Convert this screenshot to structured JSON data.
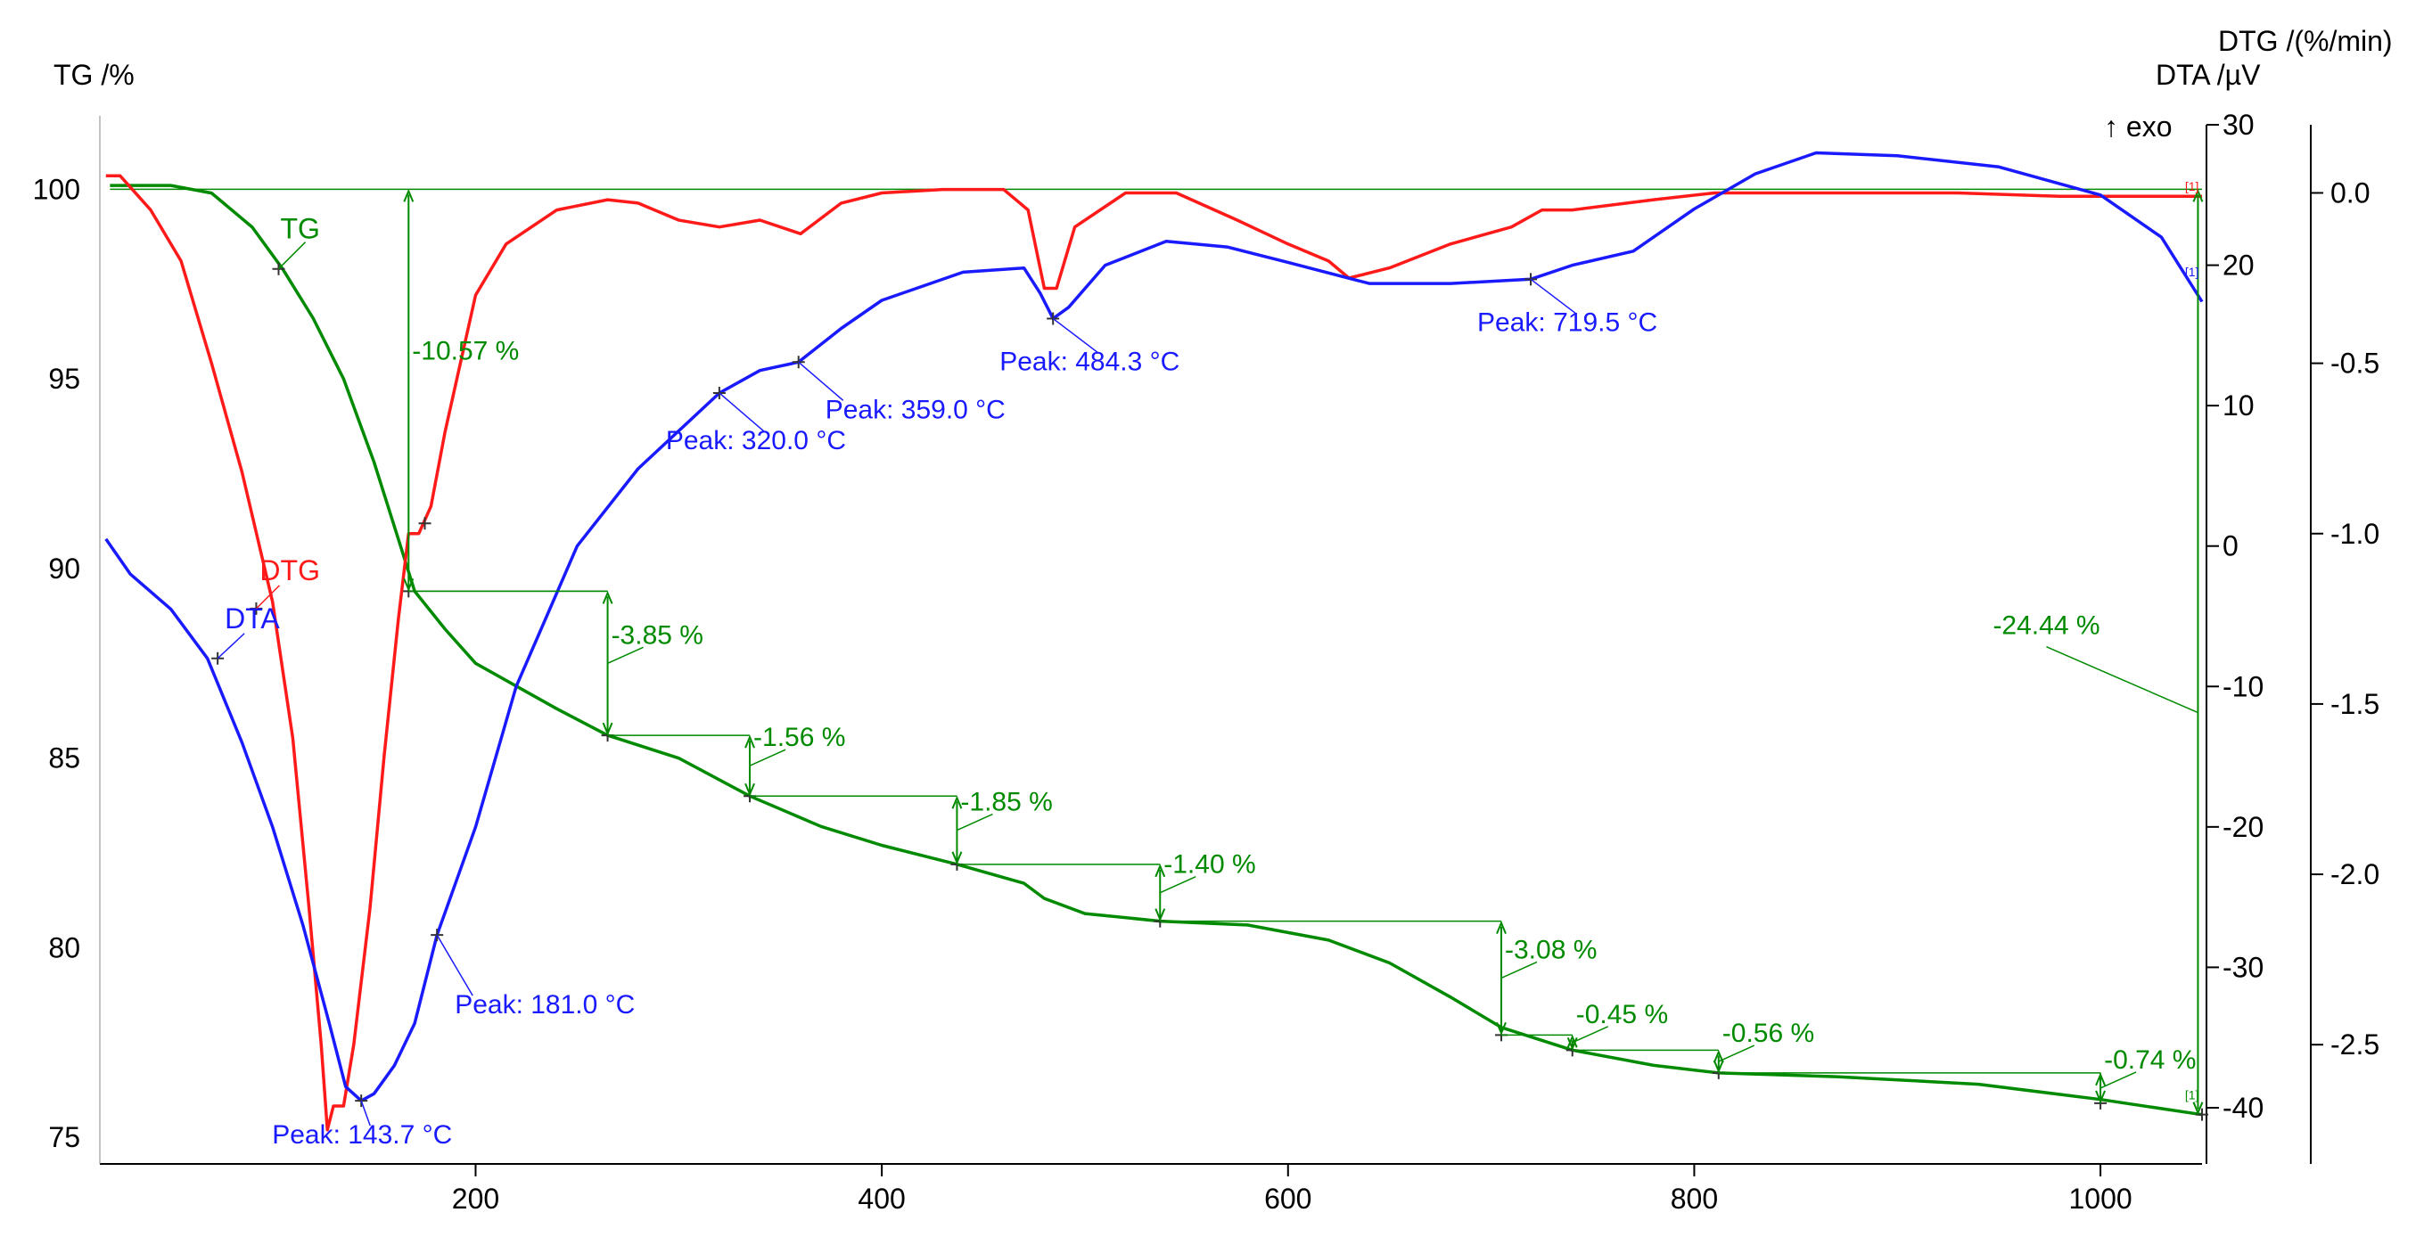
{
  "axes": {
    "tg_title": "TG /%",
    "dtg_title": "DTG /(%/min)",
    "dta_title": "DTA /µV",
    "exo_label": "↑ exo"
  },
  "colors": {
    "tg": "#008a00",
    "dtg": "#ff1a1a",
    "dta": "#1a1aff",
    "axis": "#000000"
  },
  "chart_data": {
    "type": "line",
    "x": {
      "label": "",
      "range": [
        15,
        1050
      ],
      "ticks": [
        200,
        400,
        600,
        800,
        1000
      ]
    },
    "y_tg": {
      "label": "TG /%",
      "range": [
        74.3,
        101.7
      ],
      "ticks": [
        75,
        80,
        85,
        90,
        95,
        100
      ]
    },
    "y_dta": {
      "label": "DTA /µV",
      "range": [
        -44,
        30
      ],
      "ticks": [
        -40,
        -30,
        -20,
        -10,
        0,
        10,
        20,
        30
      ]
    },
    "y_dtg": {
      "label": "DTG /(%/min)",
      "range": [
        -2.85,
        0.2
      ],
      "ticks": [
        -2.5,
        -2.0,
        -1.5,
        -1.0,
        -0.5,
        0.0
      ]
    },
    "series": [
      {
        "name": "TG",
        "axis": "tg",
        "points": [
          [
            20,
            100.1
          ],
          [
            50,
            100.1
          ],
          [
            70,
            99.9
          ],
          [
            90,
            99.0
          ],
          [
            105,
            97.9
          ],
          [
            120,
            96.6
          ],
          [
            135,
            95.0
          ],
          [
            150,
            92.8
          ],
          [
            163,
            90.6
          ],
          [
            170,
            89.4
          ],
          [
            185,
            88.4
          ],
          [
            200,
            87.5
          ],
          [
            220,
            86.9
          ],
          [
            240,
            86.3
          ],
          [
            265,
            85.6
          ],
          [
            300,
            85.0
          ],
          [
            335,
            84.0
          ],
          [
            370,
            83.2
          ],
          [
            400,
            82.7
          ],
          [
            437,
            82.2
          ],
          [
            470,
            81.7
          ],
          [
            480,
            81.3
          ],
          [
            500,
            80.9
          ],
          [
            537,
            80.7
          ],
          [
            580,
            80.6
          ],
          [
            620,
            80.2
          ],
          [
            650,
            79.6
          ],
          [
            680,
            78.7
          ],
          [
            705,
            77.9
          ],
          [
            740,
            77.3
          ],
          [
            780,
            76.9
          ],
          [
            812,
            76.7
          ],
          [
            870,
            76.6
          ],
          [
            940,
            76.4
          ],
          [
            1000,
            76.0
          ],
          [
            1050,
            75.6
          ]
        ],
        "markers": [
          [
            103,
            97.9
          ],
          [
            167,
            89.4
          ],
          [
            265,
            85.6
          ],
          [
            335,
            84.0
          ],
          [
            437,
            82.2
          ],
          [
            537,
            80.7
          ],
          [
            705,
            77.7
          ],
          [
            740,
            77.3
          ],
          [
            812,
            76.7
          ],
          [
            1000,
            75.9
          ],
          [
            1050,
            75.6
          ]
        ]
      },
      {
        "name": "DTG",
        "axis": "dtg",
        "points": [
          [
            18,
            0.05
          ],
          [
            25,
            0.05
          ],
          [
            40,
            -0.05
          ],
          [
            55,
            -0.2
          ],
          [
            70,
            -0.5
          ],
          [
            85,
            -0.82
          ],
          [
            100,
            -1.2
          ],
          [
            110,
            -1.6
          ],
          [
            118,
            -2.1
          ],
          [
            124,
            -2.5
          ],
          [
            127,
            -2.75
          ],
          [
            130,
            -2.68
          ],
          [
            135,
            -2.68
          ],
          [
            140,
            -2.5
          ],
          [
            148,
            -2.1
          ],
          [
            155,
            -1.65
          ],
          [
            162,
            -1.25
          ],
          [
            167,
            -1.0
          ],
          [
            172,
            -1.0
          ],
          [
            178,
            -0.92
          ],
          [
            185,
            -0.7
          ],
          [
            200,
            -0.3
          ],
          [
            215,
            -0.15
          ],
          [
            240,
            -0.05
          ],
          [
            265,
            -0.02
          ],
          [
            280,
            -0.03
          ],
          [
            300,
            -0.08
          ],
          [
            320,
            -0.1
          ],
          [
            340,
            -0.08
          ],
          [
            360,
            -0.12
          ],
          [
            380,
            -0.03
          ],
          [
            400,
            0.0
          ],
          [
            430,
            0.01
          ],
          [
            460,
            0.01
          ],
          [
            472,
            -0.05
          ],
          [
            480,
            -0.28
          ],
          [
            486,
            -0.28
          ],
          [
            495,
            -0.1
          ],
          [
            520,
            0.0
          ],
          [
            545,
            0.0
          ],
          [
            575,
            -0.08
          ],
          [
            600,
            -0.15
          ],
          [
            620,
            -0.2
          ],
          [
            630,
            -0.25
          ],
          [
            650,
            -0.22
          ],
          [
            680,
            -0.15
          ],
          [
            710,
            -0.1
          ],
          [
            725,
            -0.05
          ],
          [
            740,
            -0.05
          ],
          [
            780,
            -0.02
          ],
          [
            810,
            0.0
          ],
          [
            860,
            0.0
          ],
          [
            930,
            0.0
          ],
          [
            980,
            -0.01
          ],
          [
            1020,
            -0.01
          ],
          [
            1050,
            -0.01
          ]
        ],
        "markers": [
          [
            92,
            -1.22
          ],
          [
            175,
            -0.97
          ]
        ]
      },
      {
        "name": "DTA",
        "axis": "dta",
        "points": [
          [
            18,
            0.5
          ],
          [
            30,
            -2.0
          ],
          [
            50,
            -4.5
          ],
          [
            68,
            -8.0
          ],
          [
            85,
            -14.0
          ],
          [
            100,
            -20.0
          ],
          [
            115,
            -27.0
          ],
          [
            128,
            -34.0
          ],
          [
            136,
            -38.5
          ],
          [
            143.7,
            -39.5
          ],
          [
            150,
            -39.0
          ],
          [
            160,
            -37.0
          ],
          [
            170,
            -34.0
          ],
          [
            181,
            -27.7
          ],
          [
            200,
            -20.0
          ],
          [
            220,
            -10.0
          ],
          [
            250,
            0.0
          ],
          [
            280,
            5.5
          ],
          [
            320,
            10.9
          ],
          [
            340,
            12.5
          ],
          [
            359,
            13.1
          ],
          [
            380,
            15.5
          ],
          [
            400,
            17.5
          ],
          [
            440,
            19.5
          ],
          [
            470,
            19.8
          ],
          [
            478,
            18.0
          ],
          [
            484.3,
            16.2
          ],
          [
            492,
            17.0
          ],
          [
            510,
            20.0
          ],
          [
            540,
            21.7
          ],
          [
            570,
            21.3
          ],
          [
            600,
            20.2
          ],
          [
            640,
            18.7
          ],
          [
            680,
            18.7
          ],
          [
            719.5,
            19.0
          ],
          [
            740,
            20.0
          ],
          [
            770,
            21.0
          ],
          [
            800,
            24.0
          ],
          [
            830,
            26.5
          ],
          [
            860,
            28.0
          ],
          [
            900,
            27.8
          ],
          [
            950,
            27.0
          ],
          [
            1000,
            25.0
          ],
          [
            1030,
            22.0
          ],
          [
            1050,
            17.4
          ]
        ],
        "markers": [
          [
            73,
            -8.0
          ],
          [
            143.7,
            -39.5
          ],
          [
            181,
            -27.7
          ],
          [
            320,
            10.9
          ],
          [
            359,
            13.1
          ],
          [
            484.3,
            16.2
          ],
          [
            719.5,
            19.0
          ]
        ]
      }
    ],
    "baseline_tg": 100,
    "peak_labels": [
      {
        "text": "Peak: 143.7 °C",
        "x": 143.7,
        "y": -39.5
      },
      {
        "text": "Peak: 181.0 °C",
        "x": 181.0,
        "y": -27.7
      },
      {
        "text": "Peak: 320.0 °C",
        "x": 320.0,
        "y": 10.9
      },
      {
        "text": "Peak: 359.0 °C",
        "x": 359.0,
        "y": 13.1
      },
      {
        "text": "Peak: 484.3 °C",
        "x": 484.3,
        "y": 16.2
      },
      {
        "text": "Peak: 719.5 °C",
        "x": 719.5,
        "y": 19.0
      }
    ],
    "mass_changes": [
      {
        "text": "-10.57 %",
        "x": 167,
        "from": 100.0,
        "to": 89.4
      },
      {
        "text": "-3.85 %",
        "x": 265,
        "from": 89.4,
        "to": 85.6
      },
      {
        "text": "-1.56 %",
        "x": 335,
        "from": 85.6,
        "to": 84.0
      },
      {
        "text": "-1.85 %",
        "x": 437,
        "from": 84.0,
        "to": 82.2
      },
      {
        "text": "-1.40 %",
        "x": 537,
        "from": 82.2,
        "to": 80.7
      },
      {
        "text": "-3.08 %",
        "x": 705,
        "from": 80.7,
        "to": 77.7
      },
      {
        "text": "-0.45 %",
        "x": 740,
        "from": 77.7,
        "to": 77.3
      },
      {
        "text": "-0.56 %",
        "x": 812,
        "from": 77.3,
        "to": 76.7
      },
      {
        "text": "-0.74 %",
        "x": 1000,
        "from": 76.7,
        "to": 75.9
      },
      {
        "text": "-24.44 %",
        "x": 1048,
        "from": 100.0,
        "to": 75.6
      }
    ],
    "series_labels": [
      "TG",
      "DTG",
      "DTA"
    ],
    "end_marker": "[1]"
  }
}
